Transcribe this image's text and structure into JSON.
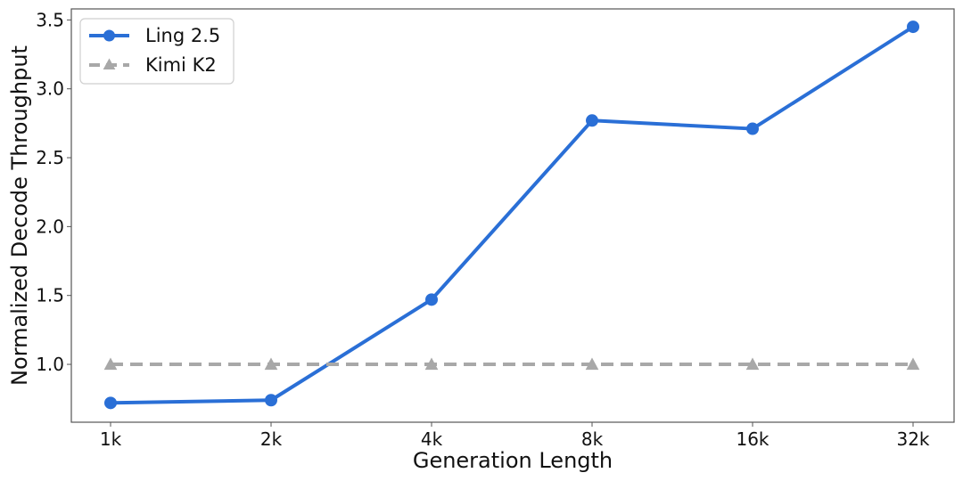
{
  "chart_data": {
    "type": "line",
    "title": "",
    "xlabel": "Generation Length",
    "ylabel": "Normalized Decode Throughput",
    "categories": [
      "1k",
      "2k",
      "4k",
      "8k",
      "16k",
      "32k"
    ],
    "series": [
      {
        "name": "Ling 2.5",
        "values": [
          0.72,
          0.74,
          1.47,
          2.77,
          2.71,
          3.45
        ],
        "color": "#2a6fd6",
        "line_style": "solid",
        "marker": "circle"
      },
      {
        "name": "Kimi K2",
        "values": [
          1.0,
          1.0,
          1.0,
          1.0,
          1.0,
          1.0
        ],
        "color": "#a8a8a8",
        "line_style": "dashed",
        "marker": "triangle"
      }
    ],
    "ylim": [
      0.58,
      3.58
    ],
    "yticks": [
      "1.0",
      "1.5",
      "2.0",
      "2.5",
      "3.0",
      "3.5"
    ],
    "grid": false,
    "legend_position": "top-left"
  }
}
